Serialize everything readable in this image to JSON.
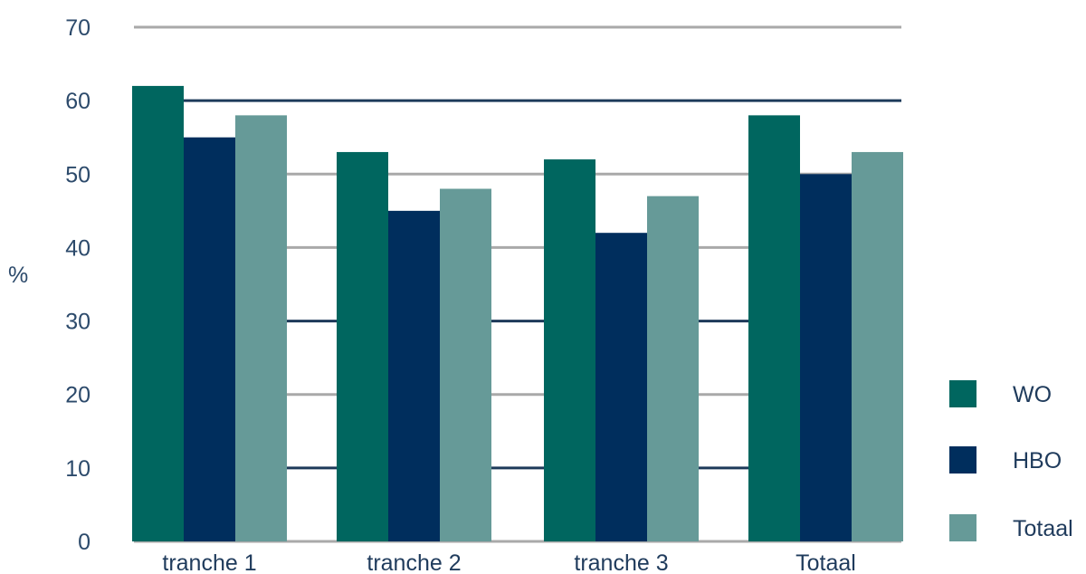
{
  "chart_data": {
    "type": "bar",
    "ylabel": "%",
    "xlabel": "",
    "ylim": [
      0,
      70
    ],
    "yticks": [
      0,
      10,
      20,
      30,
      40,
      50,
      60,
      70
    ],
    "grid": true,
    "legend_position": "right",
    "categories": [
      "tranche 1",
      "tranche 2",
      "tranche 3",
      "Totaal"
    ],
    "series": [
      {
        "name": "WO",
        "color": "#00665f",
        "values": [
          62,
          53,
          52,
          58
        ]
      },
      {
        "name": "HBO",
        "color": "#002e5d",
        "values": [
          55,
          45,
          42,
          50
        ]
      },
      {
        "name": "Totaal",
        "color": "#669a98",
        "values": [
          58,
          48,
          47,
          53
        ]
      }
    ],
    "colors": {
      "grid_light": "#a9a9a9",
      "grid_dark": "#1d3a5a",
      "axis_text": "#2c4a6b"
    }
  }
}
